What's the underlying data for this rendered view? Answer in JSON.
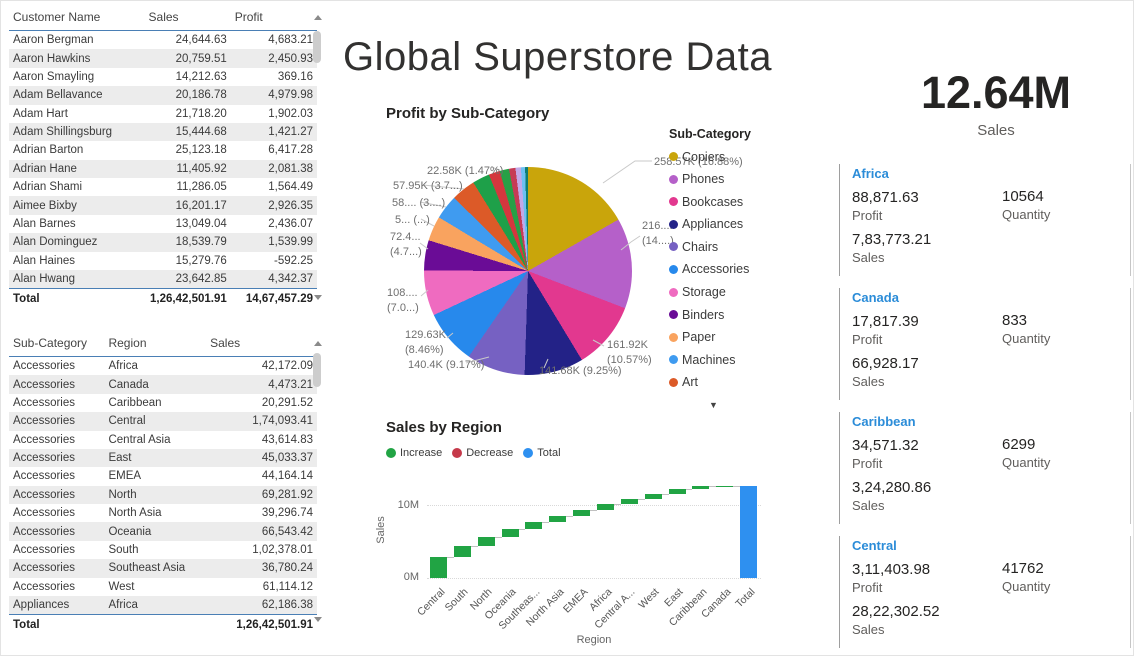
{
  "page": {
    "title": "Global Superstore Data"
  },
  "customer_table": {
    "columns": [
      "Customer Name",
      "Sales",
      "Profit"
    ],
    "rows": [
      [
        "Aaron Bergman",
        "24,644.63",
        "4,683.21"
      ],
      [
        "Aaron Hawkins",
        "20,759.51",
        "2,450.93"
      ],
      [
        "Aaron Smayling",
        "14,212.63",
        "369.16"
      ],
      [
        "Adam Bellavance",
        "20,186.78",
        "4,979.98"
      ],
      [
        "Adam Hart",
        "21,718.20",
        "1,902.03"
      ],
      [
        "Adam Shillingsburg",
        "15,444.68",
        "1,421.27"
      ],
      [
        "Adrian Barton",
        "25,123.18",
        "6,417.28"
      ],
      [
        "Adrian Hane",
        "11,405.92",
        "2,081.38"
      ],
      [
        "Adrian Shami",
        "11,286.05",
        "1,564.49"
      ],
      [
        "Aimee Bixby",
        "16,201.17",
        "2,926.35"
      ],
      [
        "Alan Barnes",
        "13,049.04",
        "2,436.07"
      ],
      [
        "Alan Dominguez",
        "18,539.79",
        "1,539.99"
      ],
      [
        "Alan Haines",
        "15,279.76",
        "-592.25"
      ],
      [
        "Alan Hwang",
        "23,642.85",
        "4,342.37"
      ]
    ],
    "total": [
      "Total",
      "1,26,42,501.91",
      "14,67,457.29"
    ]
  },
  "subcategory_table": {
    "columns": [
      "Sub-Category",
      "Region",
      "Sales"
    ],
    "rows": [
      [
        "Accessories",
        "Africa",
        "42,172.09"
      ],
      [
        "Accessories",
        "Canada",
        "4,473.21"
      ],
      [
        "Accessories",
        "Caribbean",
        "20,291.52"
      ],
      [
        "Accessories",
        "Central",
        "1,74,093.41"
      ],
      [
        "Accessories",
        "Central Asia",
        "43,614.83"
      ],
      [
        "Accessories",
        "East",
        "45,033.37"
      ],
      [
        "Accessories",
        "EMEA",
        "44,164.14"
      ],
      [
        "Accessories",
        "North",
        "69,281.92"
      ],
      [
        "Accessories",
        "North Asia",
        "39,296.74"
      ],
      [
        "Accessories",
        "Oceania",
        "66,543.42"
      ],
      [
        "Accessories",
        "South",
        "1,02,378.01"
      ],
      [
        "Accessories",
        "Southeast Asia",
        "36,780.24"
      ],
      [
        "Accessories",
        "West",
        "61,114.12"
      ],
      [
        "Appliances",
        "Africa",
        "62,186.38"
      ]
    ],
    "total": [
      "Total",
      "",
      "1,26,42,501.91"
    ]
  },
  "kpi": {
    "value": "12.64M",
    "label": "Sales"
  },
  "region_cards": [
    {
      "name": "Africa",
      "profit": "88,871.63",
      "profit_label": "Profit",
      "quantity": "10564",
      "quantity_label": "Quantity",
      "sales": "7,83,773.21",
      "sales_label": "Sales"
    },
    {
      "name": "Canada",
      "profit": "17,817.39",
      "profit_label": "Profit",
      "quantity": "833",
      "quantity_label": "Quantity",
      "sales": "66,928.17",
      "sales_label": "Sales"
    },
    {
      "name": "Caribbean",
      "profit": "34,571.32",
      "profit_label": "Profit",
      "quantity": "6299",
      "quantity_label": "Quantity",
      "sales": "3,24,280.86",
      "sales_label": "Sales"
    },
    {
      "name": "Central",
      "profit": "3,11,403.98",
      "profit_label": "Profit",
      "quantity": "41762",
      "quantity_label": "Quantity",
      "sales": "28,22,302.52",
      "sales_label": "Sales"
    }
  ],
  "chart_data": [
    {
      "type": "pie",
      "title": "Profit by Sub-Category",
      "legend_title": "Sub-Category",
      "legend_position": "right",
      "legend": [
        {
          "label": "Copiers",
          "color": "#C9A50B"
        },
        {
          "label": "Phones",
          "color": "#B560C9"
        },
        {
          "label": "Bookcases",
          "color": "#E2388F"
        },
        {
          "label": "Appliances",
          "color": "#232287"
        },
        {
          "label": "Chairs",
          "color": "#7661C2"
        },
        {
          "label": "Accessories",
          "color": "#2789EC"
        },
        {
          "label": "Storage",
          "color": "#EF6BC0"
        },
        {
          "label": "Binders",
          "color": "#6A0C96"
        },
        {
          "label": "Paper",
          "color": "#F9A35F"
        },
        {
          "label": "Machines",
          "color": "#3F9BF0"
        },
        {
          "label": "Art",
          "color": "#DC5A28"
        }
      ],
      "slices": [
        {
          "label": "Copiers",
          "value_text": "258.57K",
          "pct": 16.88,
          "color": "#C9A50B"
        },
        {
          "label": "Phones",
          "value_text": "216....",
          "pct": 14.15,
          "color": "#B560C9"
        },
        {
          "label": "Bookcases",
          "value_text": "161.92K",
          "pct": 10.57,
          "color": "#E2388F"
        },
        {
          "label": "Appliances",
          "value_text": "141.68K",
          "pct": 9.25,
          "color": "#232287"
        },
        {
          "label": "Chairs",
          "value_text": "140.4K",
          "pct": 9.17,
          "color": "#7661C2"
        },
        {
          "label": "Accessories",
          "value_text": "129.63K",
          "pct": 8.46,
          "color": "#2789EC"
        },
        {
          "label": "Storage",
          "value_text": "108....",
          "pct": 7.08,
          "color": "#EF6BC0"
        },
        {
          "label": "Binders",
          "value_text": "72.4...",
          "pct": 4.73,
          "color": "#6A0C96"
        },
        {
          "label": "Paper",
          "value_text": "5...",
          "pct": 3.87,
          "color": "#F9A35F"
        },
        {
          "label": "Machines",
          "value_text": "58....",
          "pct": 3.84,
          "color": "#3F9BF0"
        },
        {
          "label": "Art",
          "value_text": "57.95K",
          "pct": 3.78,
          "color": "#DC5A28"
        },
        {
          "label": "",
          "value_text": "",
          "pct": 2.7,
          "color": "#1EA049"
        },
        {
          "label": "",
          "value_text": "",
          "pct": 1.75,
          "color": "#D4373E"
        },
        {
          "label": "",
          "value_text": "22.58K",
          "pct": 1.47,
          "color": "#27A046"
        },
        {
          "label": "",
          "value_text": "",
          "pct": 1.0,
          "color": "#C63B55"
        },
        {
          "label": "",
          "value_text": "",
          "pct": 0.85,
          "color": "#C2A8E8"
        },
        {
          "label": "",
          "value_text": "",
          "pct": 0.65,
          "color": "#6CC0F2"
        },
        {
          "label": "",
          "value_text": "",
          "pct": 0.45,
          "color": "#0E7D74"
        }
      ],
      "callouts": [
        {
          "lines": [
            "258.57K (16.88%)"
          ]
        },
        {
          "lines": [
            "216....",
            "(14....)"
          ]
        },
        {
          "lines": [
            "161.92K",
            "(10.57%)"
          ]
        },
        {
          "lines": [
            "141.68K (9.25%)"
          ]
        },
        {
          "lines": [
            "140.4K (9.17%)"
          ]
        },
        {
          "lines": [
            "129.63K",
            "(8.46%)"
          ]
        },
        {
          "lines": [
            "108....",
            "(7.0...)"
          ]
        },
        {
          "lines": [
            "72.4...",
            "(4.7...)"
          ]
        },
        {
          "lines": [
            "5... (...)"
          ]
        },
        {
          "lines": [
            "58.... (3....)"
          ]
        },
        {
          "lines": [
            "57.95K (3.7...)"
          ]
        },
        {
          "lines": [
            "22.58K (1.47%)"
          ]
        }
      ]
    },
    {
      "type": "waterfall",
      "title": "Sales by Region",
      "xlabel": "Region",
      "ylabel": "Sales",
      "yticks": [
        "0M",
        "10M"
      ],
      "legend": [
        {
          "label": "Increase",
          "color": "#21A444"
        },
        {
          "label": "Decrease",
          "color": "#C5394A"
        },
        {
          "label": "Total",
          "color": "#2E90F0"
        }
      ],
      "categories": [
        "Central",
        "South",
        "North",
        "Oceania",
        "Southeas...",
        "North Asia",
        "EMEA",
        "Africa",
        "Central A...",
        "West",
        "East",
        "Caribbean",
        "Canada",
        "Total"
      ],
      "values_m": [
        2.82,
        1.6,
        1.25,
        1.1,
        0.88,
        0.85,
        0.81,
        0.78,
        0.75,
        0.73,
        0.68,
        0.32,
        0.07
      ],
      "total_m": 12.64,
      "increase_color": "#21A444",
      "total_color": "#2E90F0"
    }
  ]
}
